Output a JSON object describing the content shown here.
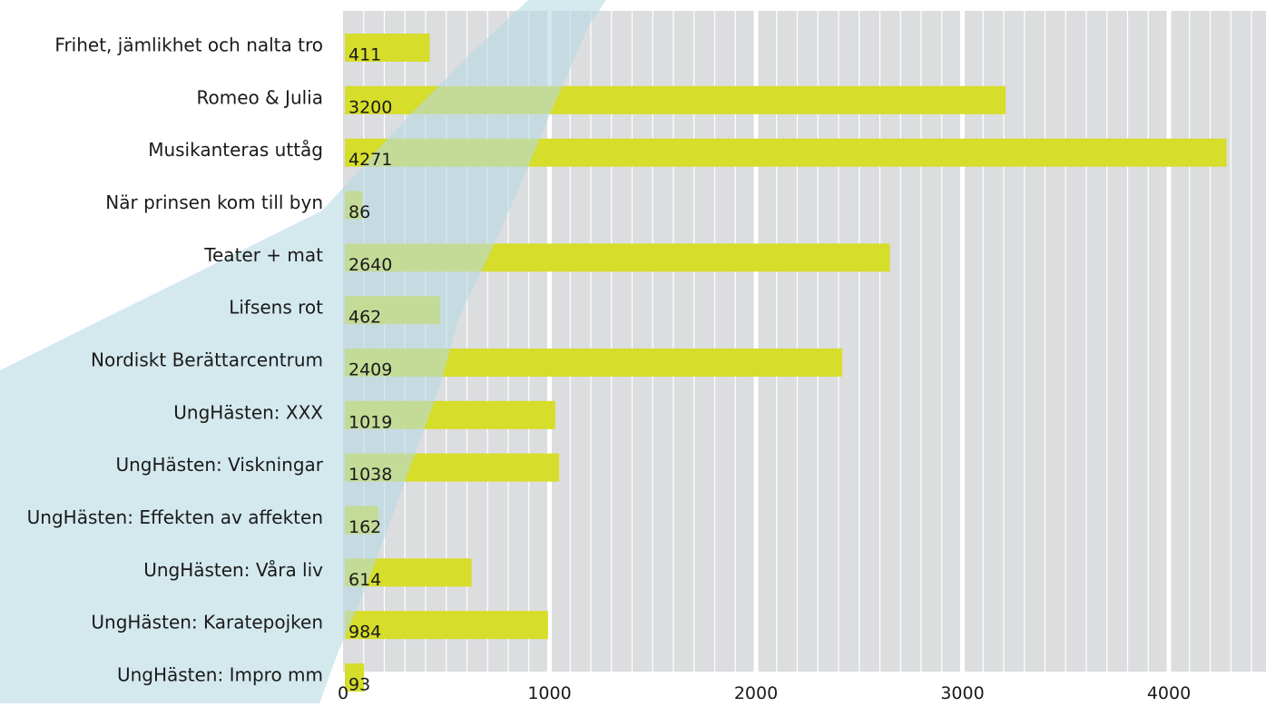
{
  "chart_data": {
    "type": "bar",
    "orientation": "horizontal",
    "title": "",
    "xlabel": "",
    "ylabel": "",
    "xlim": [
      0,
      4500
    ],
    "x_ticks": [
      0,
      1000,
      2000,
      3000,
      4000
    ],
    "grid": "vertical",
    "categories": [
      "Frihet, jämlikhet och nalta tro",
      "Romeo & Julia",
      "Musikanteras uttåg",
      "När prinsen kom till byn",
      "Teater + mat",
      "Lifsens rot",
      "Nordiskt Berättarcentrum",
      "UngHästen: XXX",
      "UngHästen: Viskningar",
      "UngHästen: Effekten av affekten",
      "UngHästen: Våra liv",
      "UngHästen: Karatepojken",
      "UngHästen: Impro mm"
    ],
    "values": [
      411,
      3200,
      4271,
      86,
      2640,
      462,
      2409,
      1019,
      1038,
      162,
      614,
      984,
      93
    ],
    "colors": {
      "bar": "#d6dd2a",
      "plot_background": "#dcdddf",
      "minor_grid": "#ffffff",
      "decor_stripe": "#b7dbe3",
      "text": "#1a1a1a"
    }
  }
}
